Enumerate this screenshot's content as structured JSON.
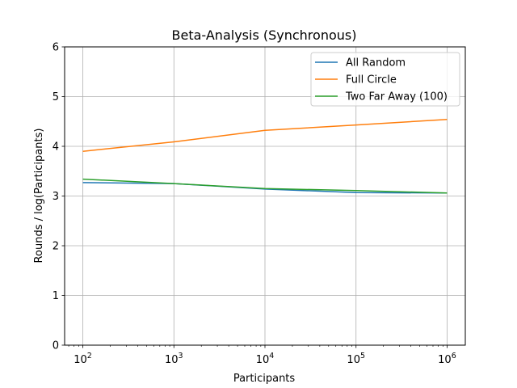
{
  "chart_data": {
    "type": "line",
    "title": "Beta-Analysis (Synchronous)",
    "xlabel": "Participants",
    "ylabel": "Rounds / log(Participants)",
    "x_scale": "log",
    "x": [
      100,
      1000,
      10000,
      100000,
      1000000
    ],
    "x_tick_labels": [
      {
        "base": "10",
        "exp": "2"
      },
      {
        "base": "10",
        "exp": "3"
      },
      {
        "base": "10",
        "exp": "4"
      },
      {
        "base": "10",
        "exp": "5"
      },
      {
        "base": "10",
        "exp": "6"
      }
    ],
    "ylim": [
      0,
      6
    ],
    "y_ticks": [
      0,
      1,
      2,
      3,
      4,
      5,
      6
    ],
    "grid": true,
    "legend_position": "top-right",
    "series": [
      {
        "name": "All Random",
        "color": "#1f77b4",
        "values": [
          3.27,
          3.25,
          3.14,
          3.07,
          3.06
        ]
      },
      {
        "name": "Full Circle",
        "color": "#ff7f0e",
        "values": [
          3.9,
          4.09,
          4.32,
          4.43,
          4.54
        ]
      },
      {
        "name": "Two Far Away (100)",
        "color": "#2ca02c",
        "values": [
          3.34,
          3.25,
          3.15,
          3.11,
          3.06
        ]
      }
    ]
  }
}
